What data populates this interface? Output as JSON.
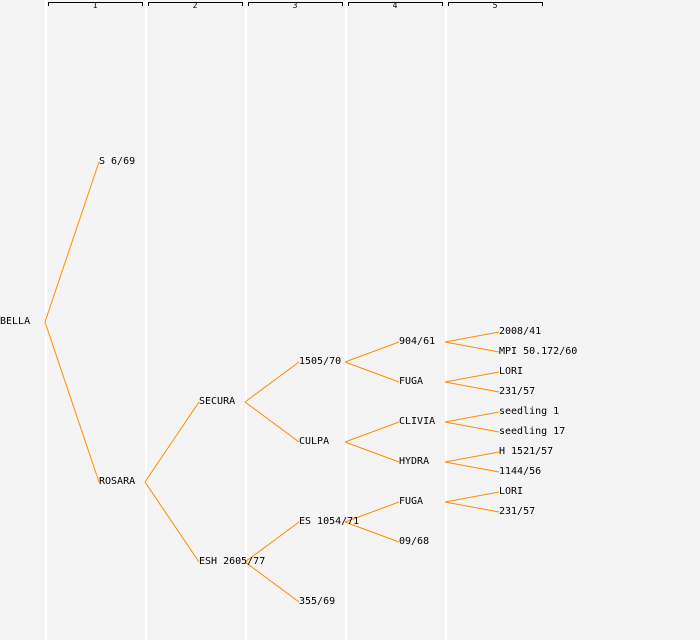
{
  "generations": [
    "1",
    "2",
    "3",
    "4",
    "5"
  ],
  "colors": {
    "line": "#ff8c00",
    "background": "#f4f4f4"
  },
  "pedigree": {
    "name": "BELLA",
    "parents": [
      {
        "name": "S 6/69"
      },
      {
        "name": "ROSARA",
        "parents": [
          {
            "name": "SECURA",
            "parents": [
              {
                "name": "1505/70",
                "parents": [
                  {
                    "name": "904/61",
                    "parents": [
                      {
                        "name": "2008/41"
                      },
                      {
                        "name": "MPI 50.172/60"
                      }
                    ]
                  },
                  {
                    "name": "FUGA",
                    "parents": [
                      {
                        "name": "LORI"
                      },
                      {
                        "name": "231/57"
                      }
                    ]
                  }
                ]
              },
              {
                "name": "CULPA",
                "parents": [
                  {
                    "name": "CLIVIA",
                    "parents": [
                      {
                        "name": "seedling 1"
                      },
                      {
                        "name": "seedling 17"
                      }
                    ]
                  },
                  {
                    "name": "HYDRA",
                    "parents": [
                      {
                        "name": "H 1521/57"
                      },
                      {
                        "name": "1144/56"
                      }
                    ]
                  }
                ]
              }
            ]
          },
          {
            "name": "ESH 2605/77",
            "parents": [
              {
                "name": "ES 1054/71",
                "parents": [
                  {
                    "name": "FUGA",
                    "parents": [
                      {
                        "name": "LORI"
                      },
                      {
                        "name": "231/57"
                      }
                    ]
                  },
                  {
                    "name": "09/68"
                  }
                ]
              },
              {
                "name": "355/69"
              }
            ]
          }
        ]
      }
    ]
  }
}
